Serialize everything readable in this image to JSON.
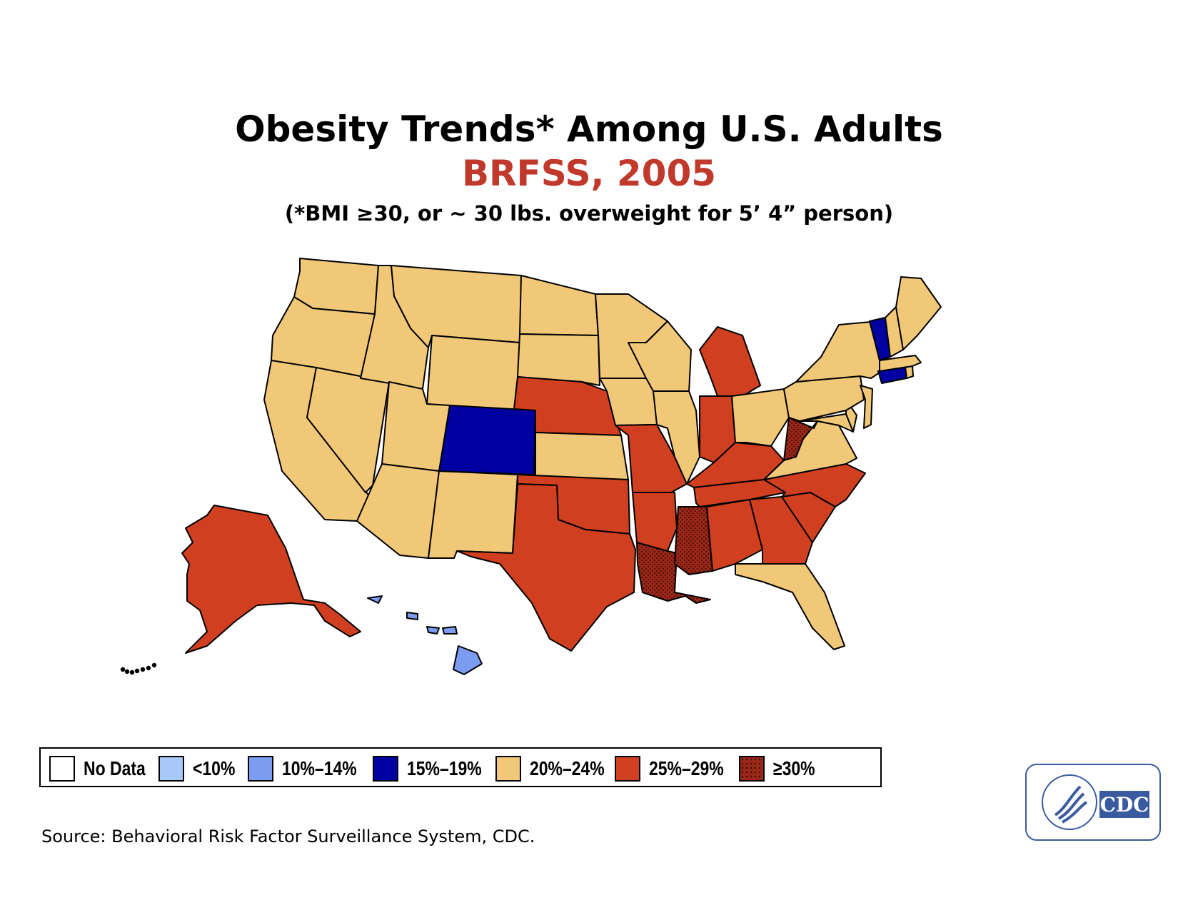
{
  "header": {
    "title": "Obesity Trends* Among U.S. Adults",
    "subtitle": "BRFSS, 2005",
    "footnote": "(*BMI ≥30, or ~ 30 lbs. overweight for 5’ 4” person)"
  },
  "legend": [
    {
      "label": "No Data",
      "color": "#ffffff",
      "pattern": false
    },
    {
      "label": "<10%",
      "color": "#a8c8f8",
      "pattern": false
    },
    {
      "label": "10%–14%",
      "color": "#7b9cf0",
      "pattern": false
    },
    {
      "label": "15%–19%",
      "color": "#0000a0",
      "pattern": false
    },
    {
      "label": "20%–24%",
      "color": "#f0c878",
      "pattern": false
    },
    {
      "label": "25%–29%",
      "color": "#d04020",
      "pattern": false
    },
    {
      "label": "≥30%",
      "color": "#9a2818",
      "pattern": true
    }
  ],
  "map_data": {
    "regions": {
      "WA": "20%–24%",
      "OR": "20%–24%",
      "CA": "20%–24%",
      "NV": "20%–24%",
      "ID": "20%–24%",
      "MT": "20%–24%",
      "WY": "20%–24%",
      "UT": "20%–24%",
      "AZ": "20%–24%",
      "NM": "20%–24%",
      "CO": "15%–19%",
      "ND": "20%–24%",
      "SD": "20%–24%",
      "NE": "25%–29%",
      "KS": "20%–24%",
      "OK": "25%–29%",
      "TX": "25%–29%",
      "MN": "20%–24%",
      "IA": "20%–24%",
      "MO": "25%–29%",
      "AR": "25%–29%",
      "LA": "≥30%",
      "WI": "20%–24%",
      "IL": "20%–24%",
      "MI": "25%–29%",
      "IN": "25%–29%",
      "OH": "20%–24%",
      "KY": "25%–29%",
      "TN": "25%–29%",
      "MS": "≥30%",
      "AL": "25%–29%",
      "GA": "25%–29%",
      "FL": "20%–24%",
      "SC": "25%–29%",
      "NC": "25%–29%",
      "VA": "20%–24%",
      "WV": "≥30%",
      "MD": "20%–24%",
      "DE": "20%–24%",
      "PA": "20%–24%",
      "NJ": "20%–24%",
      "NY": "20%–24%",
      "CT": "15%–19%",
      "RI": "20%–24%",
      "MA": "20%–24%",
      "VT": "15%–19%",
      "NH": "20%–24%",
      "ME": "20%–24%",
      "AK": "25%–29%",
      "HI": "10%–14%"
    }
  },
  "source": "Source: Behavioral Risk Factor Surveillance System, CDC.",
  "logo": {
    "text": "CDC",
    "border_color": "#3a5ba0"
  }
}
